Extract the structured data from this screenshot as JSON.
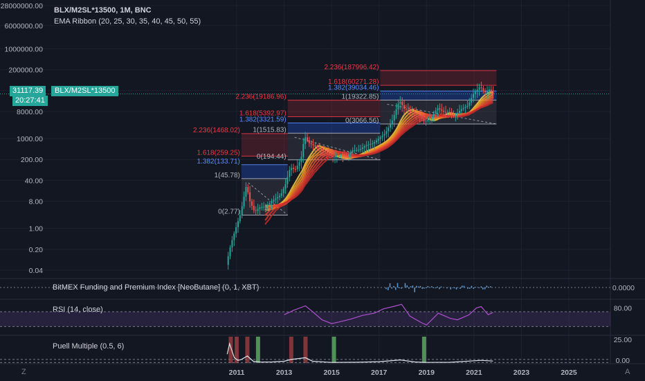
{
  "header": {
    "symbol_line": "BLX/M2SL*13500, 1M, BNC",
    "indicator_line": "EMA Ribbon (20, 25, 30, 35, 40, 45, 50, 55)"
  },
  "last_price": {
    "value": "31117.39",
    "countdown": "20:27:41",
    "symbol_tag": "BLX/M2SL*13500"
  },
  "colors": {
    "background": "#131722",
    "up": "#26a69a",
    "down": "#ef5350",
    "fib_red": "#f23645",
    "fib_blue": "#2962ff",
    "grid": "#1e222d",
    "text": "#b2b5be"
  },
  "corner": {
    "left": "Z",
    "right": "A"
  },
  "chart_data": [
    {
      "type": "candlestick",
      "scale": "log",
      "y_tick_labels": [
        "28000000.00",
        "6000000.00",
        "1000000.00",
        "200000.00",
        "40000.00",
        "8000.00",
        "1000.00",
        "200.00",
        "40.00",
        "8.00",
        "1.00",
        "0.20",
        "0.04"
      ],
      "y_tick_values": [
        28000000,
        6000000,
        1000000,
        200000,
        40000,
        8000,
        1000,
        200,
        40,
        8,
        1,
        0.2,
        0.04
      ],
      "x_tick_labels": [
        "2011",
        "2013",
        "2015",
        "2017",
        "2019",
        "2021",
        "2023",
        "2025"
      ],
      "x_tick_values": [
        2011,
        2013,
        2015,
        2017,
        2019,
        2021,
        2023,
        2025
      ],
      "price_path": [
        [
          2010.6,
          0.06
        ],
        [
          2010.8,
          0.3
        ],
        [
          2011.0,
          1.0
        ],
        [
          2011.2,
          3.0
        ],
        [
          2011.45,
          28
        ],
        [
          2011.6,
          8
        ],
        [
          2011.8,
          3.5
        ],
        [
          2012.0,
          5
        ],
        [
          2012.3,
          5.5
        ],
        [
          2012.6,
          9
        ],
        [
          2012.9,
          13
        ],
        [
          2013.1,
          30
        ],
        [
          2013.3,
          110
        ],
        [
          2013.5,
          90
        ],
        [
          2013.75,
          200
        ],
        [
          2013.9,
          1200
        ],
        [
          2014.1,
          700
        ],
        [
          2014.4,
          520
        ],
        [
          2014.7,
          380
        ],
        [
          2014.9,
          300
        ],
        [
          2015.1,
          240
        ],
        [
          2015.4,
          260
        ],
        [
          2015.7,
          250
        ],
        [
          2015.9,
          400
        ],
        [
          2016.2,
          420
        ],
        [
          2016.5,
          600
        ],
        [
          2016.8,
          700
        ],
        [
          2017.0,
          950
        ],
        [
          2017.3,
          1500
        ],
        [
          2017.6,
          4000
        ],
        [
          2017.9,
          19000
        ],
        [
          2018.1,
          10000
        ],
        [
          2018.4,
          7500
        ],
        [
          2018.7,
          6500
        ],
        [
          2018.95,
          3700
        ],
        [
          2019.2,
          4500
        ],
        [
          2019.5,
          10500
        ],
        [
          2019.8,
          7500
        ],
        [
          2020.0,
          8000
        ],
        [
          2020.2,
          5500
        ],
        [
          2020.5,
          9500
        ],
        [
          2020.8,
          13000
        ],
        [
          2021.0,
          30000
        ],
        [
          2021.3,
          55000
        ],
        [
          2021.5,
          34000
        ],
        [
          2021.7,
          45000
        ],
        [
          2021.8,
          31117.39
        ]
      ],
      "fib_boxes": [
        {
          "x0": 2011.2,
          "x1": 2013.15,
          "base_label": "0(2.77)",
          "base": 2.77,
          "top_label": "1(45.78)",
          "top": 45.78,
          "levels": [
            {
              "label": "1.382(133.71)",
              "value": 133.71,
              "color": "blue"
            },
            {
              "label": "1.618(259.25)",
              "value": 259.25,
              "color": "red"
            },
            {
              "label": "2.236(1468.02)",
              "value": 1468.02,
              "color": "red"
            }
          ]
        },
        {
          "x0": 2013.15,
          "x1": 2017.05,
          "base_label": "0(194.44)",
          "base": 194.44,
          "top_label": "1(1515.83)",
          "top": 1515.83,
          "levels": [
            {
              "label": "1.382(3321.59)",
              "value": 3321.59,
              "color": "blue"
            },
            {
              "label": "1.618(5392.97)",
              "value": 5392.97,
              "color": "red"
            },
            {
              "label": "2.236(19186.96)",
              "value": 19186.96,
              "color": "red"
            }
          ]
        },
        {
          "x0": 2017.05,
          "x1": 2021.95,
          "base_label": "0(3066.56)",
          "base": 3066.56,
          "top_label": "1(19322.85)",
          "top": 19322.85,
          "levels": [
            {
              "label": "1.382(39034.46)",
              "value": 39034.46,
              "color": "blue"
            },
            {
              "label": "1.618(60271.28)",
              "value": 60271.28,
              "color": "red"
            },
            {
              "label": "2.236(187996.42)",
              "value": 187996.42,
              "color": "red"
            }
          ]
        }
      ]
    },
    {
      "type": "bar",
      "title": "BitMEX Funding and Premium Index [NeoButane] (0, 1, XBT)",
      "y_tick_label": "0.0000",
      "x_range": [
        2017.3,
        2021.7
      ]
    },
    {
      "type": "line",
      "title": "RSI (14, close)",
      "y_tick_label": "80.00",
      "band": [
        30,
        70
      ],
      "x": [
        2013.0,
        2013.4,
        2013.9,
        2014.2,
        2014.6,
        2015.0,
        2015.3,
        2015.8,
        2016.3,
        2016.8,
        2017.2,
        2017.6,
        2017.95,
        2018.3,
        2018.8,
        2019.0,
        2019.5,
        2020.0,
        2020.3,
        2020.8,
        2021.1,
        2021.3,
        2021.6,
        2021.8
      ],
      "values": [
        62,
        74,
        86,
        70,
        48,
        38,
        42,
        50,
        60,
        66,
        78,
        84,
        90,
        58,
        40,
        34,
        66,
        52,
        48,
        62,
        80,
        84,
        62,
        68
      ]
    },
    {
      "type": "line",
      "title": "Puell Multiple (0.5, 6)",
      "y_tick_label": "25.00",
      "y_tick_label_2": "0.00",
      "ylim": [
        0,
        30
      ],
      "x": [
        2010.6,
        2010.7,
        2010.8,
        2010.9,
        2011.05,
        2011.2,
        2011.45,
        2011.7,
        2012.0,
        2012.5,
        2013.0,
        2013.3,
        2013.9,
        2014.2,
        2015.0,
        2016.0,
        2017.0,
        2017.9,
        2018.5,
        2019.0,
        2020.0,
        2021.0,
        2021.3,
        2021.8
      ],
      "values": [
        10,
        22,
        14,
        6,
        3,
        4,
        8,
        2,
        1,
        1.2,
        2,
        4,
        6,
        2,
        0.6,
        0.8,
        1.5,
        3.5,
        1.2,
        0.6,
        0.8,
        2.5,
        3,
        2.2
      ],
      "green_markers": [
        2011.9,
        2015.1,
        2018.9
      ],
      "red_markers": [
        2010.75,
        2011.0,
        2011.45,
        2013.3,
        2013.9
      ]
    }
  ]
}
